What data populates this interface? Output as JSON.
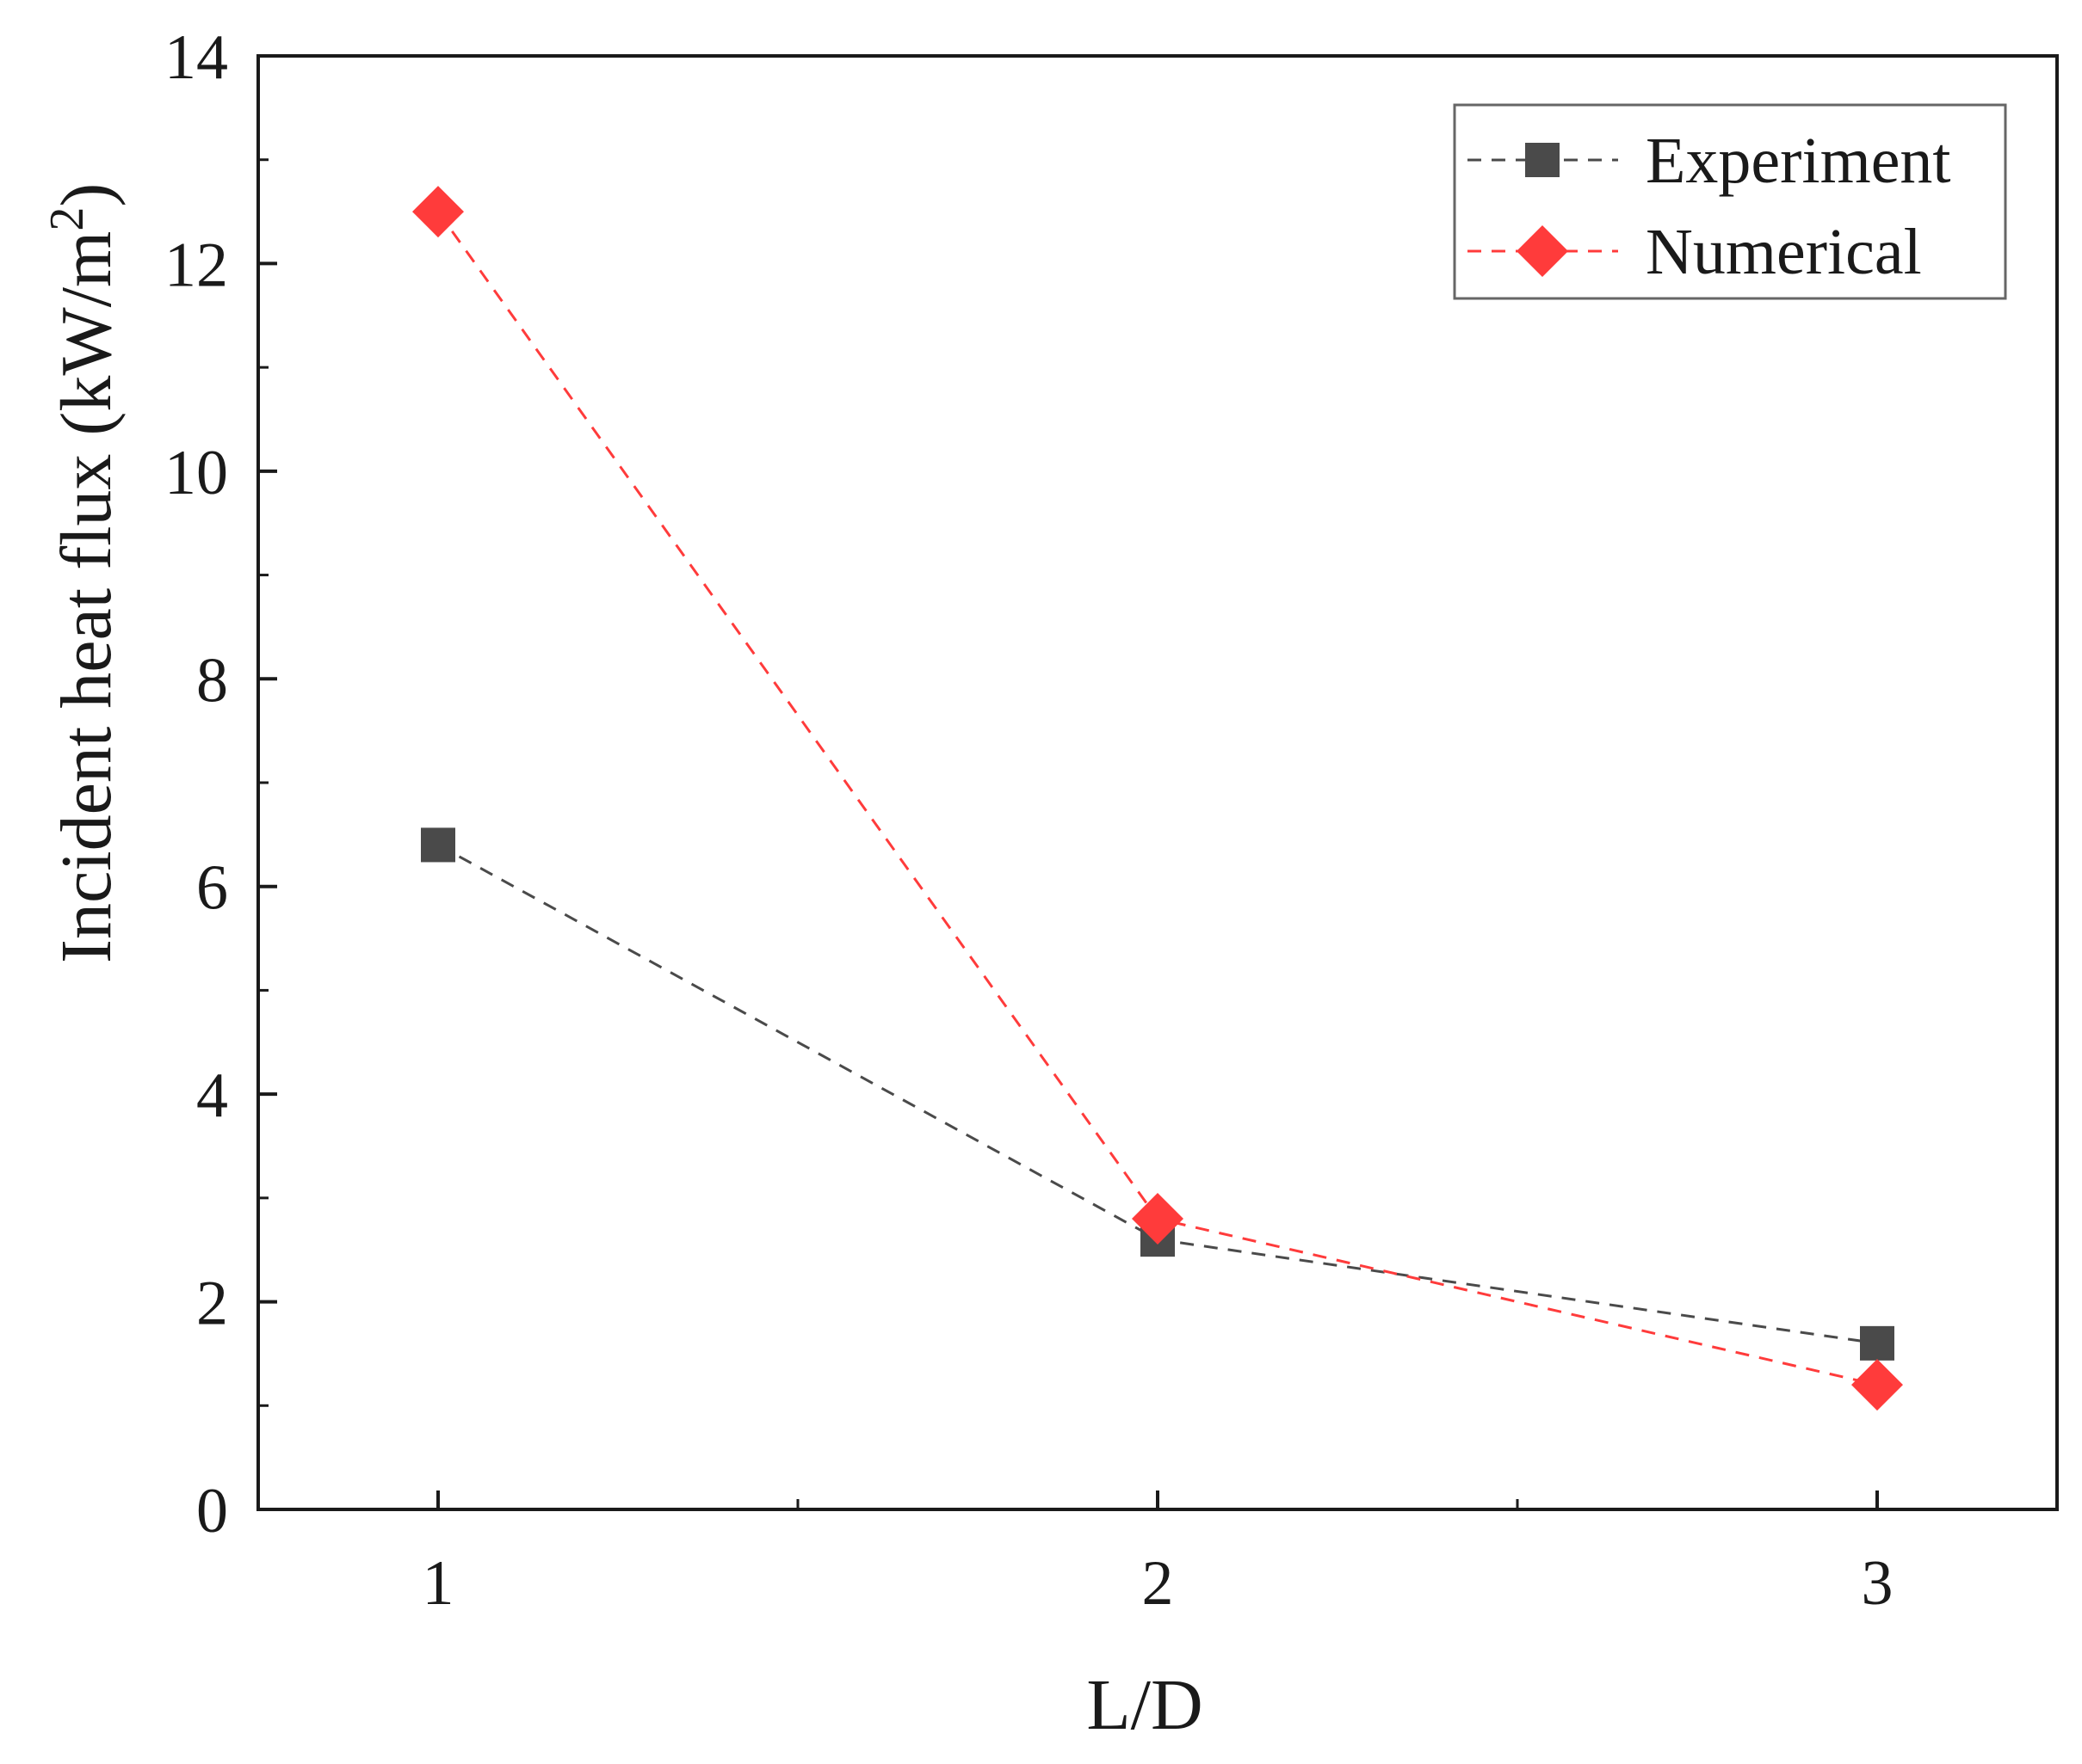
{
  "chart_data": {
    "type": "line",
    "title": "",
    "xlabel": "L/D",
    "ylabel_main": "Incident heat flux (kW/m",
    "ylabel_sup": "2",
    "ylabel_close": ")",
    "x": [
      1,
      2,
      3
    ],
    "xlim": [
      0.75,
      3.25
    ],
    "ylim": [
      0,
      14
    ],
    "xticks": [
      1,
      2,
      3
    ],
    "xtick_labels": [
      "1",
      "2",
      "3"
    ],
    "xminor_ticks": [
      1.5,
      2.5
    ],
    "yticks": [
      0,
      2,
      4,
      6,
      8,
      10,
      12,
      14
    ],
    "ytick_labels": [
      "0",
      "2",
      "4",
      "6",
      "8",
      "10",
      "12",
      "14"
    ],
    "grid": false,
    "legend_position": "top-right",
    "series": [
      {
        "name": "Experiment",
        "marker": "square",
        "line_style": "dashed",
        "color": "#4a4a4a",
        "values": [
          6.4,
          2.6,
          1.6
        ]
      },
      {
        "name": "Numerical",
        "marker": "diamond",
        "line_style": "dashed",
        "color": "#ff3b3b",
        "values": [
          12.5,
          2.8,
          1.2
        ]
      }
    ]
  }
}
